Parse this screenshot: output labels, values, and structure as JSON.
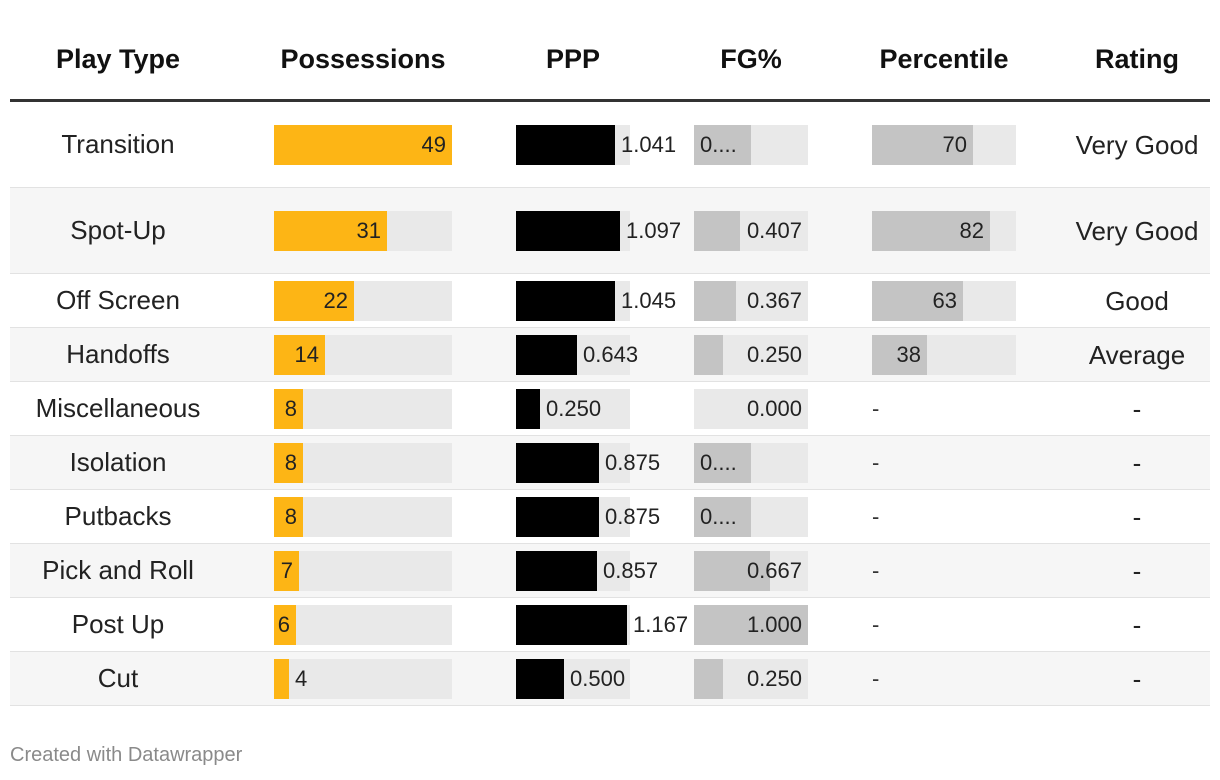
{
  "chart_data": {
    "type": "table",
    "columns": [
      "Play Type",
      "Possessions",
      "PPP",
      "FG%",
      "Percentile",
      "Rating"
    ],
    "scales": {
      "possessions_max": 49,
      "ppp_max": 1.2,
      "fg_max": 1.0,
      "percentile_max": 100
    },
    "rows": [
      {
        "play_type": "Transition",
        "possessions": 49,
        "poss_label": "49",
        "ppp": 1.041,
        "ppp_label": "1.041",
        "fg": 0.5,
        "fg_label": "0....",
        "percentile": 70,
        "pct_label": "70",
        "rating": "Very Good"
      },
      {
        "play_type": "Spot-Up",
        "possessions": 31,
        "poss_label": "31",
        "ppp": 1.097,
        "ppp_label": "1.097",
        "fg": 0.407,
        "fg_label": "0.407",
        "percentile": 82,
        "pct_label": "82",
        "rating": "Very Good"
      },
      {
        "play_type": "Off Screen",
        "possessions": 22,
        "poss_label": "22",
        "ppp": 1.045,
        "ppp_label": "1.045",
        "fg": 0.367,
        "fg_label": "0.367",
        "percentile": 63,
        "pct_label": "63",
        "rating": "Good"
      },
      {
        "play_type": "Handoffs",
        "possessions": 14,
        "poss_label": "14",
        "ppp": 0.643,
        "ppp_label": "0.643",
        "fg": 0.25,
        "fg_label": "0.250",
        "percentile": 38,
        "pct_label": "38",
        "rating": "Average"
      },
      {
        "play_type": "Miscellaneous",
        "possessions": 8,
        "poss_label": "8",
        "ppp": 0.25,
        "ppp_label": "0.250",
        "fg": 0.0,
        "fg_label": "0.000",
        "percentile": null,
        "pct_label": "-",
        "rating": "-"
      },
      {
        "play_type": "Isolation",
        "possessions": 8,
        "poss_label": "8",
        "ppp": 0.875,
        "ppp_label": "0.875",
        "fg": 0.5,
        "fg_label": "0....",
        "percentile": null,
        "pct_label": "-",
        "rating": "-"
      },
      {
        "play_type": "Putbacks",
        "possessions": 8,
        "poss_label": "8",
        "ppp": 0.875,
        "ppp_label": "0.875",
        "fg": 0.5,
        "fg_label": "0....",
        "percentile": null,
        "pct_label": "-",
        "rating": "-"
      },
      {
        "play_type": "Pick and Roll",
        "possessions": 7,
        "poss_label": "7",
        "ppp": 0.857,
        "ppp_label": "0.857",
        "fg": 0.667,
        "fg_label": "0.667",
        "percentile": null,
        "pct_label": "-",
        "rating": "-"
      },
      {
        "play_type": "Post Up",
        "possessions": 6,
        "poss_label": "6",
        "ppp": 1.167,
        "ppp_label": "1.167",
        "fg": 1.0,
        "fg_label": "1.000",
        "percentile": null,
        "pct_label": "-",
        "rating": "-"
      },
      {
        "play_type": "Cut",
        "possessions": 4,
        "poss_label": "4",
        "ppp": 0.5,
        "ppp_label": "0.500",
        "fg": 0.25,
        "fg_label": "0.250",
        "percentile": null,
        "pct_label": "-",
        "rating": "-"
      }
    ]
  },
  "colors": {
    "possessions_bar": "#fdb515",
    "ppp_bar": "#000000",
    "fg_bar": "#c4c4c4",
    "percentile_bar": "#c4c4c4",
    "bar_track": "#e9e9e9"
  },
  "footer": {
    "credit": "Created with Datawrapper"
  }
}
